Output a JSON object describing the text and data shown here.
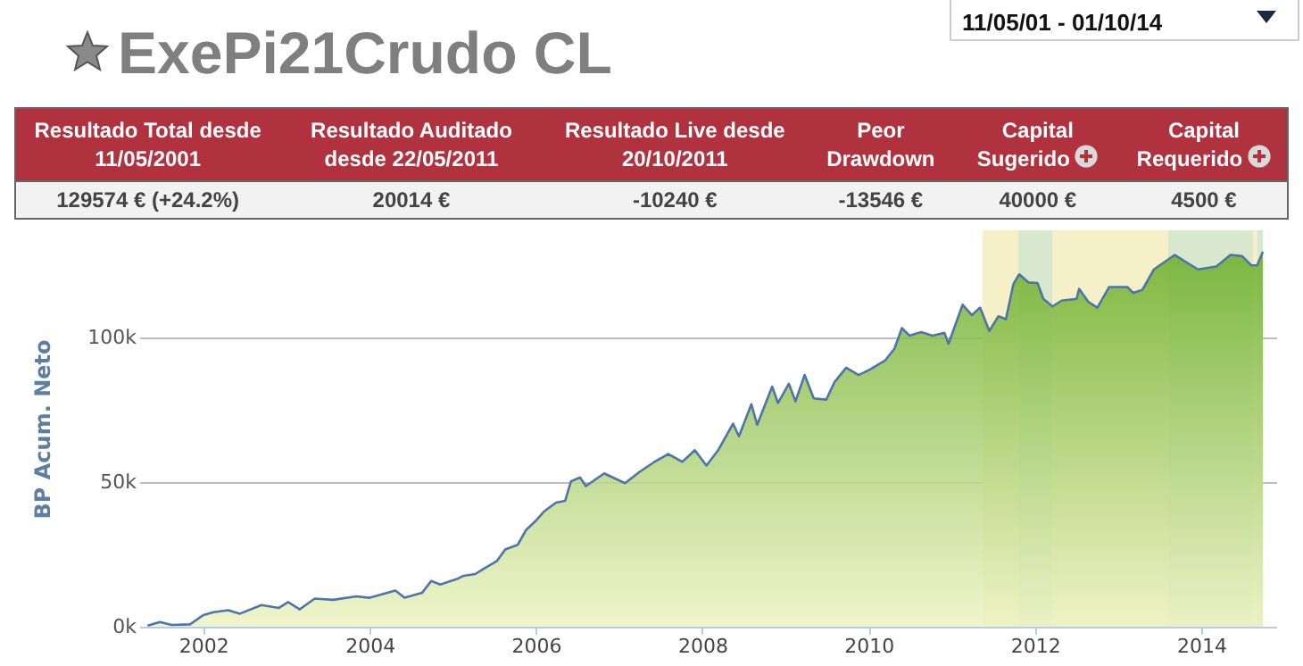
{
  "chart_data": {
    "type": "area",
    "title": "ExePi21Crudo CL",
    "subtitle": "11/05/01 - 01/10/14",
    "annotations": [
      "Resultado Total desde 11/05/2001",
      "129574 € (+24.2%)",
      "Resultado Auditado desde 22/05/2011",
      "20014 €",
      "Resultado Live desde 20/10/2011",
      "-10240 €",
      "Peor Drawdown",
      "-13546 €",
      "Capital Sugerido",
      "40000 €",
      "Capital Requerido",
      "4500 €"
    ],
    "ylabel": "BP Acum. Neto",
    "x": [
      2001.33,
      2001.48,
      2001.62,
      2001.84,
      2002.0,
      2002.12,
      2002.3,
      2002.44,
      2002.7,
      2002.91,
      2003.02,
      2003.16,
      2003.34,
      2003.56,
      2003.84,
      2004.0,
      2004.31,
      2004.42,
      2004.63,
      2004.74,
      2004.85,
      2005.06,
      2005.13,
      2005.27,
      2005.38,
      2005.53,
      2005.63,
      2005.78,
      2005.88,
      2005.99,
      2006.1,
      2006.24,
      2006.35,
      2006.42,
      2006.53,
      2006.6,
      2006.82,
      2007.07,
      2007.25,
      2007.41,
      2007.59,
      2007.76,
      2007.91,
      2008.05,
      2008.19,
      2008.37,
      2008.44,
      2008.59,
      2008.66,
      2008.84,
      2008.91,
      2009.04,
      2009.12,
      2009.23,
      2009.34,
      2009.49,
      2009.59,
      2009.73,
      2009.88,
      2010.02,
      2010.2,
      2010.31,
      2010.4,
      2010.49,
      2010.63,
      2010.77,
      2010.91,
      2010.96,
      2011.13,
      2011.24,
      2011.34,
      2011.45,
      2011.56,
      2011.65,
      2011.74,
      2011.81,
      2011.92,
      2012.03,
      2012.1,
      2012.21,
      2012.32,
      2012.5,
      2012.53,
      2012.64,
      2012.75,
      2012.89,
      2013.11,
      2013.18,
      2013.29,
      2013.43,
      2013.58,
      2013.68,
      2013.79,
      2013.96,
      2014.18,
      2014.35,
      2014.49,
      2014.6,
      2014.67,
      2014.74
    ],
    "series": [
      {
        "color": "#4f74a6",
        "values": [
          400,
          1600,
          600,
          800,
          4000,
          5000,
          5700,
          4500,
          7500,
          6500,
          8500,
          6000,
          9700,
          9300,
          10500,
          10000,
          12500,
          10000,
          11700,
          15800,
          14600,
          16600,
          17600,
          18200,
          20200,
          22700,
          26700,
          28300,
          33400,
          36400,
          39900,
          42900,
          43500,
          50200,
          51600,
          48600,
          53000,
          49600,
          53600,
          56700,
          59700,
          57000,
          61000,
          55700,
          61000,
          70200,
          65800,
          76900,
          69800,
          83000,
          77300,
          84000,
          77900,
          87000,
          78900,
          78500,
          84600,
          89500,
          87000,
          89000,
          92100,
          96100,
          103200,
          100600,
          101800,
          100600,
          101600,
          97800,
          111300,
          107700,
          110300,
          102200,
          107300,
          106300,
          118400,
          121800,
          119000,
          118800,
          113300,
          110700,
          112700,
          113300,
          116800,
          112300,
          110300,
          117400,
          117400,
          115400,
          116400,
          123500,
          126500,
          128500,
          126500,
          123500,
          124500,
          128500,
          128100,
          124900,
          124900,
          129600
        ]
      }
    ],
    "xlim": [
      2001.23,
      2014.9
    ],
    "ylim": [
      0,
      137000
    ],
    "xticks": [
      2002,
      2004,
      2006,
      2008,
      2010,
      2012,
      2014
    ],
    "yticks": [
      {
        "value": 0,
        "label": "0k"
      },
      {
        "value": 50000,
        "label": "50k"
      },
      {
        "value": 100000,
        "label": "100k"
      }
    ],
    "grid": "y",
    "bands": [
      {
        "axis": "x",
        "from": 2011.37,
        "to": 2011.8,
        "color": "#f5f0c8"
      },
      {
        "axis": "x",
        "from": 2011.8,
        "to": 2012.21,
        "color": "#d8e8cc"
      },
      {
        "axis": "x",
        "from": 2012.21,
        "to": 2013.6,
        "color": "#f5f0c8"
      },
      {
        "axis": "x",
        "from": 2013.6,
        "to": 2014.62,
        "color": "#d8e8cc"
      },
      {
        "axis": "x",
        "from": 2014.62,
        "to": 2014.67,
        "color": "#f5f0c8"
      },
      {
        "axis": "x",
        "from": 2014.67,
        "to": 2014.74,
        "color": "#d8e8cc"
      }
    ]
  }
}
